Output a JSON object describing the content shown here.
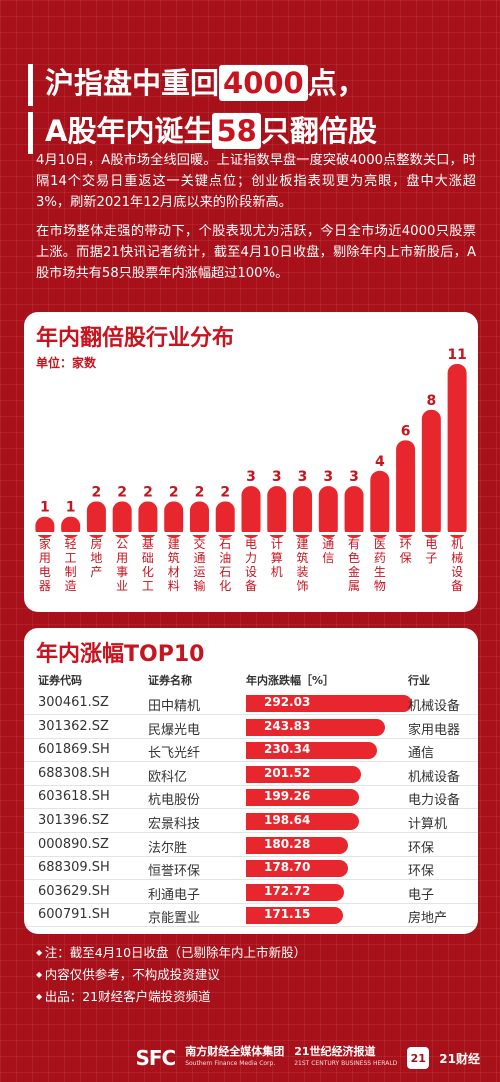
{
  "headline": {
    "line1_pre": "沪指盘中重回",
    "line1_hl": "4000",
    "line1_post": "点，",
    "line2_pre": "A股年内诞生",
    "line2_hl": "58",
    "line2_post": "只翻倍股"
  },
  "intro": {
    "p1": "4月10日，A股市场全线回暖。上证指数早盘一度突破4000点整数关口，时隔14个交易日重返这一关键点位；创业板指表现更为亮眼，盘中大涨超3%，刷新2021年12月底以来的阶段新高。",
    "p2": "在市场整体走强的带动下，个股表现尤为活跃，今日全市场近4000只股票上涨。而据21快讯记者统计，截至4月10日收盘，剔除年内上市新股后，A股市场共有58只股票年内涨幅超过100%。"
  },
  "chart1": {
    "title": "年内翻倍股行业分布",
    "unit": "单位：家数",
    "bar_color": "#e8262e",
    "label_color": "#c8141f"
  },
  "chart_data": {
    "type": "bar",
    "categories": [
      "家用电器",
      "轻工制造",
      "房地产",
      "公用事业",
      "基础化工",
      "建筑材料",
      "交通运输",
      "石油石化",
      "电力设备",
      "计算机",
      "建筑装饰",
      "通信",
      "有色金属",
      "医药生物",
      "环保",
      "电子",
      "机械设备"
    ],
    "values": [
      1,
      1,
      2,
      2,
      2,
      2,
      2,
      2,
      3,
      3,
      3,
      3,
      3,
      4,
      6,
      8,
      11
    ],
    "title": "年内翻倍股行业分布",
    "ylabel": "单位：家数"
  },
  "table": {
    "title": "年内涨幅TOP10",
    "headers": [
      "证券代码",
      "证券名称",
      "年内涨跌幅［%］",
      "行业"
    ],
    "max": 292.03,
    "rows": [
      {
        "code": "300461.SZ",
        "name": "田中精机",
        "pct": 292.03,
        "pct_text": "292.03",
        "industry": "机械设备"
      },
      {
        "code": "301362.SZ",
        "name": "民爆光电",
        "pct": 243.83,
        "pct_text": "243.83",
        "industry": "家用电器"
      },
      {
        "code": "601869.SH",
        "name": "长飞光纤",
        "pct": 230.34,
        "pct_text": "230.34",
        "industry": "通信"
      },
      {
        "code": "688308.SH",
        "name": "欧科亿",
        "pct": 201.52,
        "pct_text": "201.52",
        "industry": "机械设备"
      },
      {
        "code": "603618.SH",
        "name": "杭电股份",
        "pct": 199.26,
        "pct_text": "199.26",
        "industry": "电力设备"
      },
      {
        "code": "301396.SZ",
        "name": "宏景科技",
        "pct": 198.64,
        "pct_text": "198.64",
        "industry": "计算机"
      },
      {
        "code": "000890.SZ",
        "name": "法尔胜",
        "pct": 180.28,
        "pct_text": "180.28",
        "industry": "环保"
      },
      {
        "code": "688309.SH",
        "name": "恒誉环保",
        "pct": 178.7,
        "pct_text": "178.70",
        "industry": "环保"
      },
      {
        "code": "603629.SH",
        "name": "利通电子",
        "pct": 172.72,
        "pct_text": "172.72",
        "industry": "电子"
      },
      {
        "code": "600791.SH",
        "name": "京能置业",
        "pct": 171.15,
        "pct_text": "171.15",
        "industry": "房地产"
      }
    ]
  },
  "notes": {
    "n1": "注：截至4月10日收盘（已剔除年内上市新股）",
    "n2": "内容仅供参考，不构成投资建议",
    "n3": "出品：21财经客户端投资频道"
  },
  "footer": {
    "sfc": "SFC",
    "group_cn": "南方财经全媒体集团",
    "group_en": "Southern Finance Media Corp.",
    "paper_cn": "21世纪经济报道",
    "paper_en": "21ST CENTURY BUSINESS HERALD",
    "badge": "21",
    "app": "21财经"
  }
}
